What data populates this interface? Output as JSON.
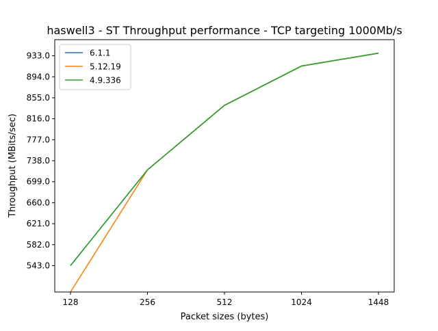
{
  "chart_data": {
    "type": "line",
    "title": "haswell3 - ST Throughput performance - TCP targeting 1000Mb/s",
    "xlabel": "Packet sizes (bytes)",
    "ylabel": "Throughput (MBits/sec)",
    "categories": [
      "128",
      "256",
      "512",
      "1024",
      "1448"
    ],
    "y_ticks": [
      543.0,
      582.0,
      621.0,
      660.0,
      699.0,
      738.0,
      777.0,
      816.0,
      855.0,
      894.0,
      933.0
    ],
    "y_tick_labels": [
      "543.0",
      "582.0",
      "621.0",
      "660.0",
      "699.0",
      "738.0",
      "777.0",
      "816.0",
      "855.0",
      "894.0",
      "933.0"
    ],
    "ylim": [
      494,
      963
    ],
    "grid": false,
    "legend_position": "top-left",
    "series": [
      {
        "name": "6.1.1",
        "color": "#1f77b4",
        "values": [
          543,
          721,
          841,
          914,
          938
        ]
      },
      {
        "name": "5.12.19",
        "color": "#ff7f0e",
        "values": [
          494,
          721,
          841,
          914,
          938
        ]
      },
      {
        "name": "4.9.336",
        "color": "#2ca02c",
        "values": [
          543,
          721,
          841,
          914,
          938
        ]
      }
    ]
  }
}
